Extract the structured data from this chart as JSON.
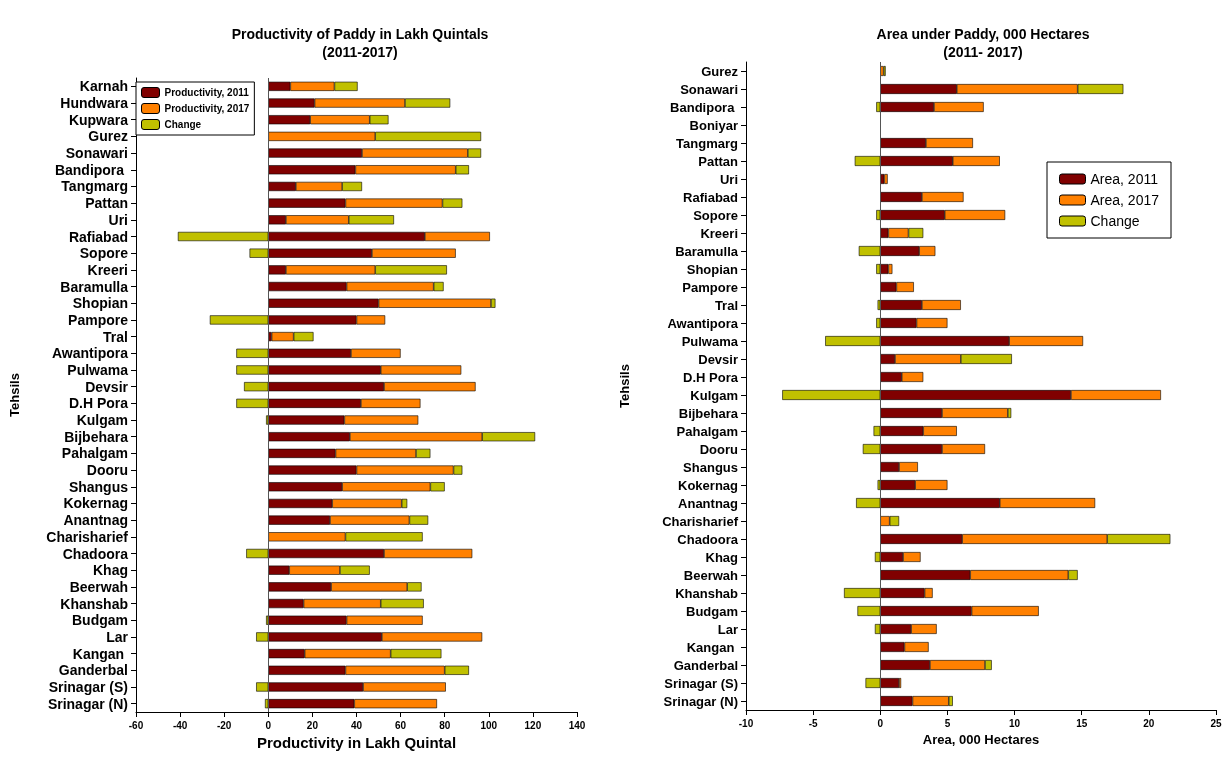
{
  "chart_data": [
    {
      "type": "bar",
      "orientation": "horizontal",
      "stacked": true,
      "title": "Productivity of Paddy in Lakh Quintals",
      "subtitle": "(2011-2017)",
      "xlabel": "Productivity in Lakh Quintal",
      "ylabel": "Tehsils",
      "categories": [
        "Karnah",
        "Hundwara",
        "Kupwara",
        "Gurez",
        "Sonawari",
        "Bandipora ",
        "Tangmarg",
        "Pattan",
        "Uri",
        "Rafiabad",
        "Sopore",
        "Kreeri",
        "Baramulla",
        "Shopian",
        "Pampore",
        "Tral",
        "Awantipora",
        "Pulwama",
        "Devsir",
        "D.H Pora",
        "Kulgam",
        "Bijbehara",
        "Pahalgam",
        "Dooru",
        "Shangus",
        "Kokernag",
        "Anantnag",
        "Charisharief",
        "Chadoora",
        "Khag",
        "Beerwah",
        "Khanshab",
        "Budgam",
        "Lar",
        "Kangan ",
        "Ganderbal",
        "Srinagar (S)",
        "Srinagar (N)"
      ],
      "series": [
        {
          "name": "Productivity, 2011",
          "color": "#800000",
          "values": [
            10,
            21,
            19,
            null,
            42.5,
            39.5,
            12.5,
            35,
            8,
            71,
            47,
            8,
            35.5,
            50,
            40,
            1.5,
            37.5,
            51,
            52.5,
            42,
            34.5,
            37,
            30.5,
            40,
            33.5,
            29,
            28,
            null,
            52.5,
            9.5,
            28.5,
            16,
            35.5,
            51.5,
            16.5,
            35,
            43,
            39
          ]
        },
        {
          "name": "Productivity, 2017",
          "color": "#ff8000",
          "values": [
            20,
            41,
            27,
            48.5,
            48,
            45.5,
            21,
            44,
            28.5,
            29.5,
            38,
            40.5,
            39.5,
            51,
            13,
            10,
            22.5,
            36.5,
            41.5,
            27,
            33.5,
            60,
            36.5,
            44,
            40,
            31.5,
            36,
            35,
            40,
            23,
            34.5,
            35,
            34.5,
            45.5,
            39,
            45,
            37.5,
            37.5
          ]
        },
        {
          "name": "Change",
          "color": "#c0c000",
          "values": [
            10.5,
            20.5,
            8.5,
            48,
            6,
            6,
            9,
            9,
            20.5,
            -41,
            -8.5,
            32.5,
            4.5,
            2,
            -26.5,
            9,
            -14.5,
            -14.5,
            -11,
            -14.5,
            -1,
            24,
            6.5,
            4,
            6.5,
            2.5,
            8.5,
            35,
            -10,
            13.5,
            6.5,
            19.5,
            -1,
            -5.5,
            23,
            11,
            -5.5,
            -1.5
          ]
        }
      ],
      "xlim": [
        -60,
        140
      ],
      "xticks": [
        -60,
        -40,
        -20,
        0,
        20,
        40,
        60,
        80,
        100,
        120,
        140
      ],
      "ref_lines": [
        {
          "axis": "x",
          "value": 0,
          "color": "#555555"
        }
      ],
      "grid": false,
      "legend": "top left"
    },
    {
      "type": "bar",
      "orientation": "horizontal",
      "stacked": true,
      "title": "Area under Paddy, 000 Hectares",
      "subtitle": "(2011- 2017)",
      "xlabel": "Area, 000 Hectares",
      "ylabel": "Tehsils",
      "categories": [
        "Gurez",
        "Sonawari",
        "Bandipora ",
        "Boniyar",
        "Tangmarg",
        "Pattan",
        "Uri",
        "Rafiabad",
        "Sopore",
        "Kreeri",
        "Baramulla",
        "Shopian",
        "Pampore",
        "Tral",
        "Awantipora",
        "Pulwama",
        "Devsir",
        "D.H Pora",
        "Kulgam",
        "Bijbehara",
        "Pahalgam",
        "Dooru",
        "Shangus",
        "Kokernag",
        "Anantnag",
        "Charisharief",
        "Chadoora",
        "Khag",
        "Beerwah",
        "Khanshab",
        "Budgam",
        "Lar",
        "Kangan ",
        "Ganderbal",
        "Srinagar (S)",
        "Srinagar (N)"
      ],
      "series": [
        {
          "name": "Area, 2011",
          "color": "#800000",
          "values": [
            null,
            5.7,
            4,
            null,
            3.4,
            5.4,
            0.3,
            3.1,
            4.8,
            0.6,
            2.9,
            0.6,
            1.2,
            3.1,
            2.7,
            9.6,
            1.1,
            1.6,
            14.2,
            4.6,
            3.2,
            4.6,
            1.4,
            2.6,
            8.9,
            null,
            6.1,
            1.7,
            6.7,
            3.3,
            6.8,
            2.3,
            1.8,
            3.7,
            1.4,
            2.4
          ]
        },
        {
          "name": "Area, 2017",
          "color": "#ff8000",
          "values": [
            0.25,
            9,
            3.7,
            null,
            3.5,
            3.5,
            0.25,
            3.1,
            4.5,
            1.5,
            1.2,
            0.3,
            1.3,
            2.9,
            2.3,
            5.5,
            4.9,
            1.6,
            6.7,
            4.9,
            2.5,
            3.2,
            1.4,
            2.4,
            7.1,
            0.7,
            10.8,
            1.3,
            7.3,
            0.6,
            5,
            1.9,
            1.8,
            4.1,
            0.15,
            2.7
          ]
        },
        {
          "name": "Change",
          "color": "#c0c000",
          "values": [
            0.15,
            3.4,
            -0.3,
            null,
            null,
            -1.9,
            null,
            null,
            -0.3,
            1.1,
            -1.6,
            -0.3,
            null,
            -0.2,
            -0.3,
            -4.1,
            3.8,
            null,
            -7.3,
            0.25,
            -0.5,
            -1.3,
            null,
            -0.2,
            -1.8,
            0.7,
            4.7,
            -0.4,
            0.7,
            -2.7,
            -1.7,
            -0.4,
            null,
            0.5,
            -1.1,
            0.3
          ]
        }
      ],
      "xlim": [
        -10,
        25
      ],
      "xticks": [
        -10,
        -5,
        0,
        5,
        10,
        15,
        20,
        25
      ],
      "ref_lines": [
        {
          "axis": "x",
          "value": 0,
          "color": "#555555"
        }
      ],
      "grid": false,
      "legend": "top right"
    }
  ]
}
